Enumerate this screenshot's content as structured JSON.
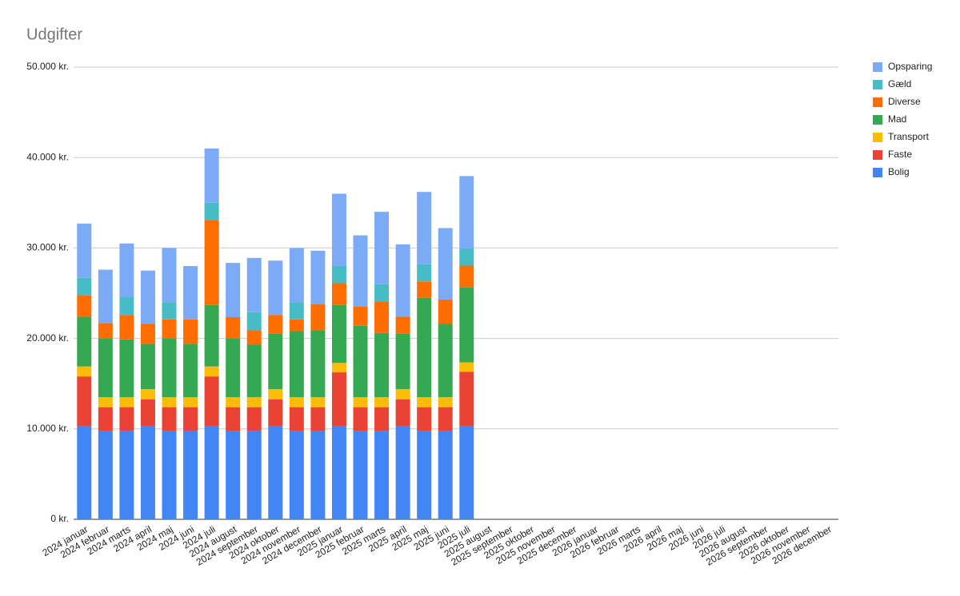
{
  "chart_data": {
    "type": "stacked-bar",
    "title": "Udgifter",
    "categories": [
      "2024 januar",
      "2024 februar",
      "2024 marts",
      "2024 april",
      "2024 maj",
      "2024 juni",
      "2024 juli",
      "2024 august",
      "2024 september",
      "2024 oktober",
      "2024 november",
      "2024 december",
      "2025 januar",
      "2025 februar",
      "2025 marts",
      "2025 april",
      "2025 maj",
      "2025 juni",
      "2025 juli",
      "2025 august",
      "2025 september",
      "2025 oktober",
      "2025 november",
      "2025 december",
      "2026 januar",
      "2026 februar",
      "2026 marts",
      "2026 april",
      "2026 maj",
      "2026 juni",
      "2026 juli",
      "2026 august",
      "2026 september",
      "2026 oktober",
      "2026 november",
      "2026 december"
    ],
    "series": [
      {
        "name": "Bolig",
        "color": "#4285f4",
        "values": [
          10300,
          9800,
          9800,
          10300,
          9800,
          9800,
          10300,
          9800,
          9800,
          10300,
          9800,
          9800,
          10300,
          9800,
          9800,
          10300,
          9800,
          9800,
          10300,
          null,
          null,
          null,
          null,
          null,
          null,
          null,
          null,
          null,
          null,
          null,
          null,
          null,
          null,
          null,
          null,
          null
        ]
      },
      {
        "name": "Faste",
        "color": "#ea4335",
        "values": [
          5500,
          2600,
          2600,
          2950,
          2600,
          2600,
          5500,
          2600,
          2600,
          2950,
          2600,
          2600,
          5950,
          2600,
          2600,
          2950,
          2600,
          2600,
          6000,
          null,
          null,
          null,
          null,
          null,
          null,
          null,
          null,
          null,
          null,
          null,
          null,
          null,
          null,
          null,
          null,
          null
        ]
      },
      {
        "name": "Transport",
        "color": "#fbbc04",
        "values": [
          1100,
          1100,
          1100,
          1150,
          1100,
          1100,
          1100,
          1100,
          1100,
          1150,
          1100,
          1100,
          1050,
          1100,
          1100,
          1150,
          1100,
          1100,
          1050,
          null,
          null,
          null,
          null,
          null,
          null,
          null,
          null,
          null,
          null,
          null,
          null,
          null,
          null,
          null,
          null,
          null
        ]
      },
      {
        "name": "Mad",
        "color": "#34a853",
        "values": [
          5500,
          6500,
          6400,
          5000,
          6500,
          5900,
          6800,
          6500,
          5800,
          6100,
          7300,
          7400,
          6400,
          7900,
          7100,
          6100,
          11000,
          8100,
          8300,
          null,
          null,
          null,
          null,
          null,
          null,
          null,
          null,
          null,
          null,
          null,
          null,
          null,
          null,
          null,
          null,
          null
        ]
      },
      {
        "name": "Diverse",
        "color": "#ff6d01",
        "values": [
          2400,
          1700,
          2700,
          2200,
          2100,
          2700,
          9400,
          2350,
          1600,
          2100,
          1300,
          2900,
          2400,
          2100,
          3500,
          1900,
          1800,
          2700,
          2400,
          null,
          null,
          null,
          null,
          null,
          null,
          null,
          null,
          null,
          null,
          null,
          null,
          null,
          null,
          null,
          null,
          null
        ]
      },
      {
        "name": "Gæld",
        "color": "#46bdc6",
        "values": [
          1900,
          0,
          2000,
          0,
          1900,
          0,
          1900,
          0,
          2000,
          0,
          1900,
          0,
          1900,
          0,
          1900,
          0,
          1900,
          0,
          1900,
          null,
          null,
          null,
          null,
          null,
          null,
          null,
          null,
          null,
          null,
          null,
          null,
          null,
          null,
          null,
          null,
          null
        ]
      },
      {
        "name": "Opsparing",
        "color": "#7baaf7",
        "values": [
          6000,
          5900,
          5900,
          5900,
          6000,
          5900,
          6000,
          6000,
          6000,
          6000,
          6000,
          5900,
          8000,
          7900,
          8000,
          8000,
          8000,
          7900,
          8000,
          null,
          null,
          null,
          null,
          null,
          null,
          null,
          null,
          null,
          null,
          null,
          null,
          null,
          null,
          null,
          null,
          null
        ]
      }
    ],
    "ylim": [
      0,
      50000
    ],
    "yticks": [
      {
        "value": 0,
        "label": "0 kr."
      },
      {
        "value": 10000,
        "label": "10.000 kr."
      },
      {
        "value": 20000,
        "label": "20.000 kr."
      },
      {
        "value": 30000,
        "label": "30.000 kr."
      },
      {
        "value": 40000,
        "label": "40.000 kr."
      },
      {
        "value": 50000,
        "label": "50.000 kr."
      }
    ],
    "grid": true,
    "legend": "right"
  }
}
